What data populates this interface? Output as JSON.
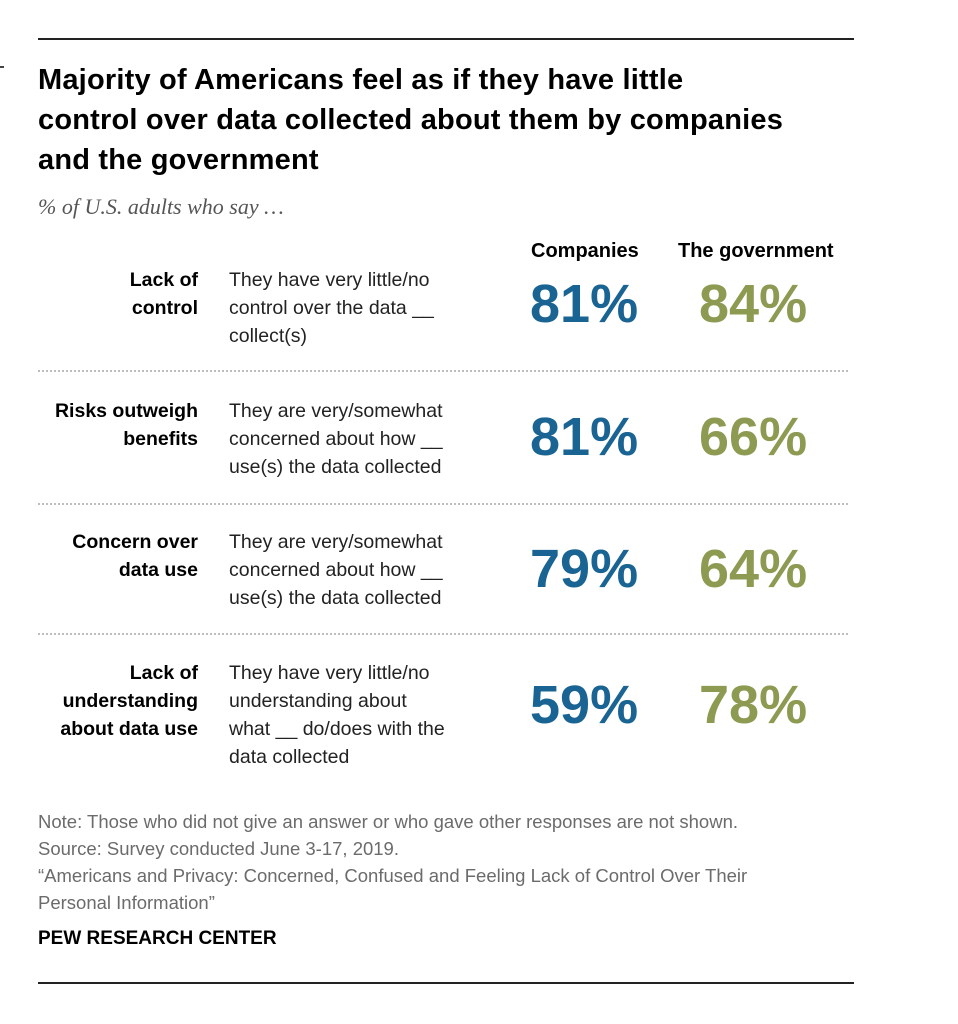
{
  "header": {
    "title_lines": [
      "Majority of Americans feel as if they have little",
      "control over data collected about them by companies",
      "and the government"
    ],
    "subtitle": "% of U.S. adults who say …"
  },
  "columns": [
    "Companies",
    "The government"
  ],
  "colors": {
    "companies": "#1a6494",
    "government": "#8c9a52"
  },
  "chart_data": {
    "type": "table",
    "title": "Majority of Americans feel as if they have little control over data collected about them by companies and the government",
    "subtitle": "% of U.S. adults who say …",
    "columns": [
      "Companies",
      "The government"
    ],
    "rows": [
      {
        "label_lines": [
          "Lack of",
          "control"
        ],
        "description_lines": [
          "They have very little/no",
          "control over the data __",
          "collect(s)"
        ],
        "display": [
          "81%",
          "84%"
        ],
        "values": [
          81,
          84
        ]
      },
      {
        "label_lines": [
          "Risks outweigh",
          "benefits"
        ],
        "description_lines": [
          "They are very/somewhat",
          "concerned about how __",
          "use(s) the data collected"
        ],
        "display": [
          "81%",
          "66%"
        ],
        "values": [
          81,
          66
        ]
      },
      {
        "label_lines": [
          "Concern over",
          "data use"
        ],
        "description_lines": [
          "They are very/somewhat",
          "concerned about how __",
          "use(s) the data collected"
        ],
        "display": [
          "79%",
          "64%"
        ],
        "values": [
          79,
          64
        ]
      },
      {
        "label_lines": [
          "Lack of",
          "understanding",
          "about data use"
        ],
        "description_lines": [
          "They have very little/no",
          "understanding about",
          "what __ do/does with the",
          "data collected"
        ],
        "display": [
          "59%",
          "78%"
        ],
        "values": [
          59,
          78
        ]
      }
    ]
  },
  "footer": {
    "note_lines": [
      "Note: Those who did not give an answer or who gave other responses are not shown.",
      "Source: Survey conducted June 3-17, 2019.",
      "“Americans and Privacy: Concerned, Confused and Feeling Lack of Control Over Their",
      "Personal Information”"
    ],
    "brand": "PEW RESEARCH CENTER"
  }
}
